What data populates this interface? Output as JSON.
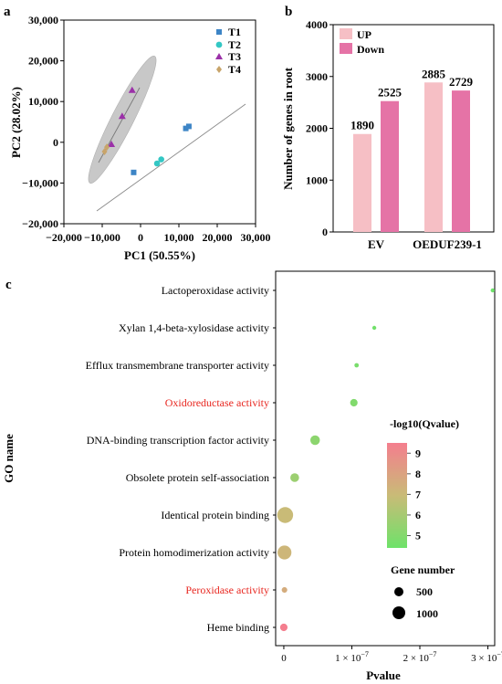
{
  "panels": {
    "a": "a",
    "b": "b",
    "c": "c"
  },
  "pca": {
    "xlabel": "PC1 (50.55%)",
    "ylabel": "PC2 (28.02%)",
    "xticks": [
      "−20,000",
      "−10,000",
      "0",
      "10,000",
      "20,000",
      "30,000"
    ],
    "yticks": [
      "30,000",
      "20,000",
      "10,000",
      "0",
      "−10,000",
      "−20,000"
    ]
  },
  "chart_data": [
    {
      "type": "scatter",
      "xlabel": "PC1 (50.55%)",
      "ylabel": "PC2 (28.02%)",
      "xlim": [
        -20000,
        30000
      ],
      "ylim": [
        -20000,
        30000
      ],
      "series": [
        {
          "name": "T1",
          "color": "#3d85c6",
          "marker": "square",
          "points": [
            [
              -1800,
              -7400
            ],
            [
              11800,
              3400
            ],
            [
              12600,
              3900
            ]
          ]
        },
        {
          "name": "T2",
          "color": "#33c7c4",
          "marker": "circle",
          "points": [
            [
              4300,
              -5200
            ],
            [
              5400,
              -4200
            ]
          ]
        },
        {
          "name": "T3",
          "color": "#9b30a8",
          "marker": "triangle",
          "points": [
            [
              -2200,
              12800
            ],
            [
              -4800,
              6400
            ],
            [
              -7600,
              -500
            ]
          ]
        },
        {
          "name": "T4",
          "color": "#c8a46a",
          "marker": "diamond",
          "points": [
            [
              -9400,
              -2300
            ],
            [
              -8800,
              -1200
            ]
          ]
        }
      ]
    },
    {
      "type": "bar",
      "ylabel": "Number of genes in root",
      "ylim": [
        0,
        4000
      ],
      "yticks": [
        0,
        1000,
        2000,
        3000,
        4000
      ],
      "categories": [
        "EV",
        "OEDUF239-1"
      ],
      "series": [
        {
          "name": "UP",
          "color": "#f6bfc5",
          "values": [
            1890,
            2885
          ]
        },
        {
          "name": "Down",
          "color": "#e573a6",
          "values": [
            2525,
            2729
          ]
        }
      ]
    },
    {
      "type": "scatter",
      "xlabel": "Pvalue",
      "ylabel": "GO name",
      "xlim": [
        -1.2e-08,
        3.1e-07
      ],
      "xticks": [
        {
          "value": 0,
          "label": "0"
        },
        {
          "value": 1e-07,
          "label": "1 × 10",
          "exp": "−7"
        },
        {
          "value": 2e-07,
          "label": "2 × 10",
          "exp": "−7"
        },
        {
          "value": 3e-07,
          "label": "3 × 10",
          "exp": "−7"
        }
      ],
      "categories": [
        {
          "name": "Lactoperoxidase activity",
          "pvalue": 3.07e-07,
          "gene_number": 50,
          "qvalue_neglog10": 4.5,
          "highlight": false
        },
        {
          "name": "Xylan 1,4-beta-xylosidase activity",
          "pvalue": 1.33e-07,
          "gene_number": 40,
          "qvalue_neglog10": 4.6,
          "highlight": false
        },
        {
          "name": "Efflux transmembrane transporter activity",
          "pvalue": 1.07e-07,
          "gene_number": 80,
          "qvalue_neglog10": 4.8,
          "highlight": false
        },
        {
          "name": "Oxidoreductase activity",
          "pvalue": 1.03e-07,
          "gene_number": 230,
          "qvalue_neglog10": 5.0,
          "highlight": true
        },
        {
          "name": "DNA-binding transcription factor activity",
          "pvalue": 4.6e-08,
          "gene_number": 380,
          "qvalue_neglog10": 5.3,
          "highlight": false
        },
        {
          "name": "Obsolete protein self-association",
          "pvalue": 1.6e-08,
          "gene_number": 320,
          "qvalue_neglog10": 5.7,
          "highlight": false
        },
        {
          "name": "Identical protein binding",
          "pvalue": 2e-09,
          "gene_number": 1050,
          "qvalue_neglog10": 6.9,
          "highlight": false
        },
        {
          "name": "Protein homodimerization  activity",
          "pvalue": 1e-09,
          "gene_number": 800,
          "qvalue_neglog10": 7.1,
          "highlight": false
        },
        {
          "name": "Peroxidase activity",
          "pvalue": 1e-09,
          "gene_number": 130,
          "qvalue_neglog10": 7.5,
          "highlight": true
        },
        {
          "name": "Heme binding",
          "pvalue": 0,
          "gene_number": 230,
          "qvalue_neglog10": 9.3,
          "highlight": false
        }
      ],
      "color_legend": {
        "title": "-log10(Qvalue)",
        "ticks": [
          9,
          8,
          7,
          6,
          5
        ],
        "low_color": "#6ee26a",
        "mid_color": "#c9bb77",
        "high_color": "#f47e8e"
      },
      "size_legend": {
        "title": "Gene number",
        "entries": [
          500,
          1000
        ]
      }
    }
  ],
  "colors": {
    "highlight": "#e8261f",
    "ellipse": "#c8c8c8"
  }
}
